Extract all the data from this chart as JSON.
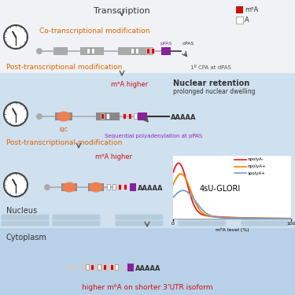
{
  "title": "Transcription",
  "bg_white": "#f0f2f5",
  "bg_nucleus": "#cfe0ef",
  "bg_cytoplasm": "#b8d0e8",
  "clock_color": "#444444",
  "legend_m6A_color": "#cc1111",
  "co_trans_text": "Co-transcriptional modification",
  "co_trans_color": "#dd6600",
  "post_trans_text": "Post-transcriptional modification",
  "post_trans_color": "#dd6600",
  "nuclear_retention_text": "Nuclear retention",
  "prolonged_text": "prolonged nuclear dwelling",
  "m6A_higher_color": "#cc1111",
  "seq_poly_text": "Sequential polyadenylation at pPAS",
  "seq_poly_color": "#9922bb",
  "pPAS_color": "#882299",
  "dPAS_color": "#333333",
  "EJC_color": "#f08050",
  "exon_color": "#aaaaaa",
  "nucleus_text": "Nucleus",
  "cytoplasm_text": "Cytoplasm",
  "glori_title": "4sU-GLORI",
  "glori_line1": "npolyA-",
  "glori_line2": "npolyA+",
  "glori_line3": "spolyA+",
  "glori_color1": "#dd2222",
  "glori_color2": "#ee8800",
  "glori_color3": "#7799cc",
  "bottom_text": "higher m⁶A on shorter 3’UTR isoform",
  "bottom_text_color": "#cc1111",
  "CPA_text": "1º CPA at dPAS"
}
